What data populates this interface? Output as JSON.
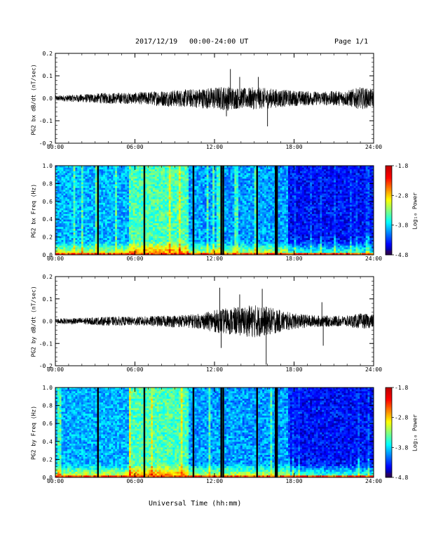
{
  "header": {
    "date": "2017/12/19",
    "range": "00:00-24:00 UT",
    "page": "Page 1/1"
  },
  "footer": {
    "xlabel": "Universal Time (hh:mm)"
  },
  "chart_data": [
    {
      "type": "line",
      "ylabel": "PG2 bx dB/dt (nT/sec)",
      "xlim": [
        0,
        24
      ],
      "ylim": [
        -0.2,
        0.2
      ],
      "y_ticks": [
        "0.2",
        "0.1",
        "0.0",
        "-0.1",
        "-0.2"
      ],
      "x_ticks": [
        "00:00",
        "06:00",
        "12:00",
        "18:00",
        "24:00"
      ],
      "envelope": {
        "hours": [
          0,
          2,
          4,
          6,
          8,
          10,
          11,
          12,
          13,
          14,
          15,
          16,
          17,
          18,
          20,
          22,
          23,
          24
        ],
        "amplitude": [
          0.012,
          0.018,
          0.025,
          0.025,
          0.035,
          0.04,
          0.045,
          0.05,
          0.055,
          0.045,
          0.05,
          0.045,
          0.04,
          0.035,
          0.03,
          0.035,
          0.05,
          0.04
        ]
      },
      "spikes": [
        {
          "hour": 13.2,
          "value": 0.13
        },
        {
          "hour": 13.9,
          "value": 0.095
        },
        {
          "hour": 15.3,
          "value": 0.095
        },
        {
          "hour": 16.0,
          "value": -0.125
        },
        {
          "hour": 12.9,
          "value": -0.08
        }
      ]
    },
    {
      "type": "heatmap",
      "ylabel": "PG2 bx Freq (Hz)",
      "xlim": [
        0,
        24
      ],
      "ylim": [
        0,
        1.0
      ],
      "y_ticks": [
        "1.0",
        "0.8",
        "0.6",
        "0.4",
        "0.2",
        "0.0"
      ],
      "x_ticks": [
        "00:00",
        "06:00",
        "12:00",
        "18:00",
        "24:00"
      ],
      "colorbar": {
        "label": "Log₁₀ Power",
        "range": [
          -4.8,
          -1.8
        ],
        "ticks": [
          "-1.8",
          "-2.8",
          "-3.8",
          "-4.8"
        ]
      },
      "gaps_hours": [
        3.2,
        6.7,
        10.4,
        12.5,
        12.65,
        15.2,
        16.6,
        16.7
      ],
      "noisy_bands": [
        {
          "from": 5.5,
          "to": 10.0,
          "level": 0.7
        }
      ],
      "quiet_bands": [
        {
          "from": 17.5,
          "to": 24.0,
          "level": 0.15
        }
      ]
    },
    {
      "type": "line",
      "ylabel": "PG2 by dB/dt (nT/sec)",
      "xlim": [
        0,
        24
      ],
      "ylim": [
        -0.2,
        0.2
      ],
      "y_ticks": [
        "0.2",
        "0.1",
        "0.0",
        "-0.1",
        "-0.2"
      ],
      "x_ticks": [
        "00:00",
        "06:00",
        "12:00",
        "18:00",
        "24:00"
      ],
      "envelope": {
        "hours": [
          0,
          2,
          4,
          6,
          8,
          10,
          11,
          12,
          13,
          14,
          15,
          16,
          17,
          18,
          20,
          22,
          23,
          24
        ],
        "amplitude": [
          0.012,
          0.015,
          0.02,
          0.02,
          0.025,
          0.03,
          0.035,
          0.05,
          0.06,
          0.065,
          0.075,
          0.065,
          0.05,
          0.035,
          0.025,
          0.025,
          0.035,
          0.03
        ]
      },
      "spikes": [
        {
          "hour": 12.4,
          "value": 0.15
        },
        {
          "hour": 15.6,
          "value": 0.145
        },
        {
          "hour": 13.9,
          "value": 0.12
        },
        {
          "hour": 15.9,
          "value": -0.195
        },
        {
          "hour": 12.5,
          "value": -0.12
        },
        {
          "hour": 20.1,
          "value": 0.085
        },
        {
          "hour": 20.2,
          "value": -0.11
        }
      ]
    },
    {
      "type": "heatmap",
      "ylabel": "PG2 by Freq (Hz)",
      "xlim": [
        0,
        24
      ],
      "ylim": [
        0,
        1.0
      ],
      "y_ticks": [
        "1.0",
        "0.8",
        "0.6",
        "0.4",
        "0.2",
        "0.0"
      ],
      "x_ticks": [
        "00:00",
        "06:00",
        "12:00",
        "18:00",
        "24:00"
      ],
      "colorbar": {
        "label": "Log₁₀ Power",
        "range": [
          -4.8,
          -1.8
        ],
        "ticks": [
          "-1.8",
          "-2.8",
          "-3.8",
          "-4.8"
        ]
      },
      "gaps_hours": [
        3.2,
        6.7,
        10.4,
        12.5,
        12.65,
        15.2,
        16.6,
        16.7
      ],
      "noisy_bands": [
        {
          "from": 5.5,
          "to": 10.0,
          "level": 0.7
        }
      ],
      "quiet_bands": [
        {
          "from": 17.5,
          "to": 24.0,
          "level": 0.15
        }
      ]
    }
  ]
}
